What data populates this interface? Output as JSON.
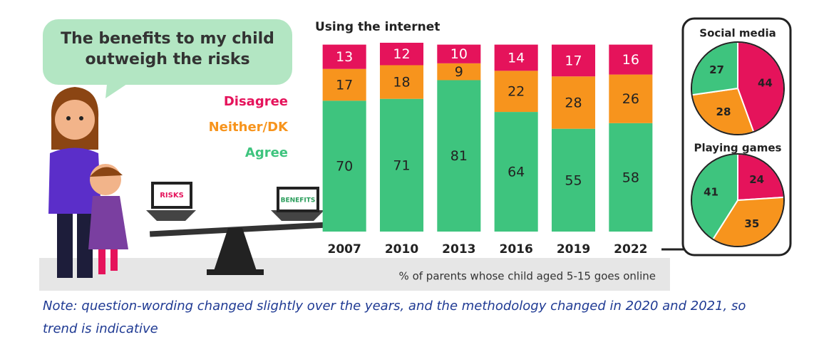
{
  "speech_bubble": {
    "lines": [
      "The benefits to my child",
      "outweigh the risks"
    ]
  },
  "illustration": {
    "left_laptop": "RISKS",
    "right_laptop": "BENEFITS"
  },
  "chart_data": [
    {
      "type": "bar",
      "stacked": true,
      "title": "Using the internet",
      "x_label": "% of parents whose child aged 5-15 goes online",
      "categories": [
        "2007",
        "2010",
        "2013",
        "2016",
        "2019",
        "2022"
      ],
      "series": [
        {
          "name": "Disagree",
          "color": "#e5135b",
          "values": [
            13,
            12,
            10,
            14,
            17,
            16
          ]
        },
        {
          "name": "Neither/DK",
          "color": "#f7941d",
          "values": [
            17,
            18,
            9,
            22,
            28,
            26
          ]
        },
        {
          "name": "Agree",
          "color": "#3ec47e",
          "values": [
            70,
            71,
            81,
            64,
            55,
            58
          ]
        }
      ]
    },
    {
      "type": "pie",
      "title": "Social media",
      "values": [
        44,
        28,
        27
      ],
      "colors": [
        "#e5135b",
        "#f7941d",
        "#3ec47e"
      ]
    },
    {
      "type": "pie",
      "title": "Playing games",
      "values": [
        24,
        35,
        41
      ],
      "colors": [
        "#e5135b",
        "#f7941d",
        "#3ec47e"
      ]
    }
  ],
  "footnote": {
    "lines": [
      "Note: question-wording changed slightly over the years, and the methodology changed in 2020 and 2021, so",
      "trend is indicative"
    ]
  }
}
